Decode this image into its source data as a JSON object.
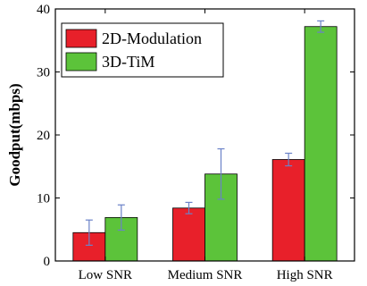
{
  "chart_data": {
    "type": "bar",
    "title": "",
    "xlabel": "",
    "ylabel": "Goodput(mbps)",
    "ylim": [
      0,
      40
    ],
    "yticks": [
      0,
      10,
      20,
      30,
      40
    ],
    "categories": [
      "Low SNR",
      "Medium SNR",
      "High SNR"
    ],
    "grid": false,
    "legend_position": "top-left",
    "series": [
      {
        "name": "2D-Modulation",
        "color": "#e8202a",
        "values": [
          4.5,
          8.4,
          16.1
        ],
        "error": [
          2.0,
          0.9,
          1.0
        ]
      },
      {
        "name": "3D-TiM",
        "color": "#5cc33a",
        "values": [
          6.9,
          13.8,
          37.2
        ],
        "error": [
          2.0,
          4.0,
          0.9
        ]
      }
    ],
    "error_bar_color": "#6b82c8"
  }
}
